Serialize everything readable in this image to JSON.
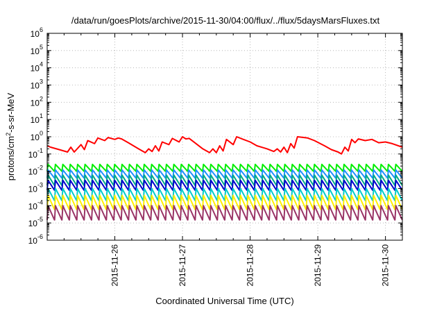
{
  "chart_data": {
    "type": "line",
    "title": "/data/run/goesPlots/archive/2015-11-30/04:00/flux/../flux/5daysMarsFluxes.txt",
    "xlabel": "Coordinated Universal Time (UTC)",
    "ylabel": {
      "base": "protons/cm",
      "sup": "2",
      "rest": "-s-sr-MeV"
    },
    "y_scale": "log",
    "ylim_exponent": [
      -6,
      6
    ],
    "y_tick_exponents": [
      -6,
      -5,
      -4,
      -3,
      -2,
      -1,
      0,
      1,
      2,
      3,
      4,
      5,
      6
    ],
    "y_tick_base": "10",
    "x_tick_labels": [
      "2015-11-26",
      "2015-11-27",
      "2015-11-28",
      "2015-11-29",
      "2015-11-30"
    ],
    "x_range_days": [
      0,
      5.25
    ],
    "x_tick_positions_days": [
      1,
      2,
      3,
      4,
      5
    ],
    "grid": true,
    "legend": "none",
    "series": [
      {
        "color": "#ff0000",
        "kind": "smooth",
        "points": [
          [
            0,
            0.3
          ],
          [
            0.05,
            0.25
          ],
          [
            0.2,
            0.17
          ],
          [
            0.3,
            0.13
          ],
          [
            0.35,
            0.25
          ],
          [
            0.4,
            0.13
          ],
          [
            0.5,
            0.35
          ],
          [
            0.55,
            0.18
          ],
          [
            0.6,
            0.6
          ],
          [
            0.7,
            0.4
          ],
          [
            0.75,
            0.85
          ],
          [
            0.85,
            0.6
          ],
          [
            0.9,
            0.9
          ],
          [
            1.0,
            0.7
          ],
          [
            1.05,
            0.85
          ],
          [
            1.1,
            0.75
          ],
          [
            1.2,
            0.45
          ],
          [
            1.35,
            0.2
          ],
          [
            1.45,
            0.12
          ],
          [
            1.5,
            0.2
          ],
          [
            1.55,
            0.14
          ],
          [
            1.6,
            0.3
          ],
          [
            1.65,
            0.15
          ],
          [
            1.7,
            0.5
          ],
          [
            1.8,
            0.35
          ],
          [
            1.85,
            0.8
          ],
          [
            1.95,
            0.5
          ],
          [
            2.0,
            1.0
          ],
          [
            2.05,
            0.75
          ],
          [
            2.1,
            0.8
          ],
          [
            2.2,
            0.4
          ],
          [
            2.3,
            0.2
          ],
          [
            2.4,
            0.12
          ],
          [
            2.45,
            0.2
          ],
          [
            2.5,
            0.12
          ],
          [
            2.55,
            0.3
          ],
          [
            2.6,
            0.15
          ],
          [
            2.65,
            0.7
          ],
          [
            2.75,
            0.35
          ],
          [
            2.8,
            1.0
          ],
          [
            2.9,
            0.7
          ],
          [
            3.0,
            0.5
          ],
          [
            3.1,
            0.3
          ],
          [
            3.25,
            0.2
          ],
          [
            3.35,
            0.14
          ],
          [
            3.4,
            0.2
          ],
          [
            3.45,
            0.13
          ],
          [
            3.5,
            0.25
          ],
          [
            3.55,
            0.12
          ],
          [
            3.6,
            0.4
          ],
          [
            3.65,
            0.22
          ],
          [
            3.7,
            1.0
          ],
          [
            3.85,
            0.85
          ],
          [
            3.95,
            0.6
          ],
          [
            4.1,
            0.3
          ],
          [
            4.2,
            0.18
          ],
          [
            4.3,
            0.13
          ],
          [
            4.35,
            0.1
          ],
          [
            4.4,
            0.25
          ],
          [
            4.45,
            0.15
          ],
          [
            4.5,
            0.7
          ],
          [
            4.55,
            0.45
          ],
          [
            4.6,
            0.75
          ],
          [
            4.7,
            0.6
          ],
          [
            4.8,
            0.7
          ],
          [
            4.9,
            0.45
          ],
          [
            5.0,
            0.5
          ],
          [
            5.1,
            0.4
          ],
          [
            5.25,
            0.25
          ]
        ]
      },
      {
        "color": "#00ee00",
        "kind": "sawtooth",
        "level_hi": 0.025,
        "level_lo": 0.01
      },
      {
        "color": "#1e90ff",
        "kind": "sawtooth",
        "level_hi": 0.012,
        "level_lo": 0.004
      },
      {
        "color": "#00aa88",
        "kind": "sawtooth",
        "level_hi": 0.006,
        "level_lo": 0.0015
      },
      {
        "color": "#0000cc",
        "kind": "sawtooth",
        "level_hi": 0.003,
        "level_lo": 0.0008
      },
      {
        "color": "#00cccc",
        "kind": "sawtooth",
        "level_hi": 0.001,
        "level_lo": 0.0002
      },
      {
        "color": "#ffee00",
        "kind": "sawtooth",
        "level_hi": 0.0004,
        "level_lo": 6e-05
      },
      {
        "color": "#993366",
        "kind": "sawtooth",
        "level_hi": 0.0001,
        "level_lo": 1.5e-05
      }
    ]
  }
}
